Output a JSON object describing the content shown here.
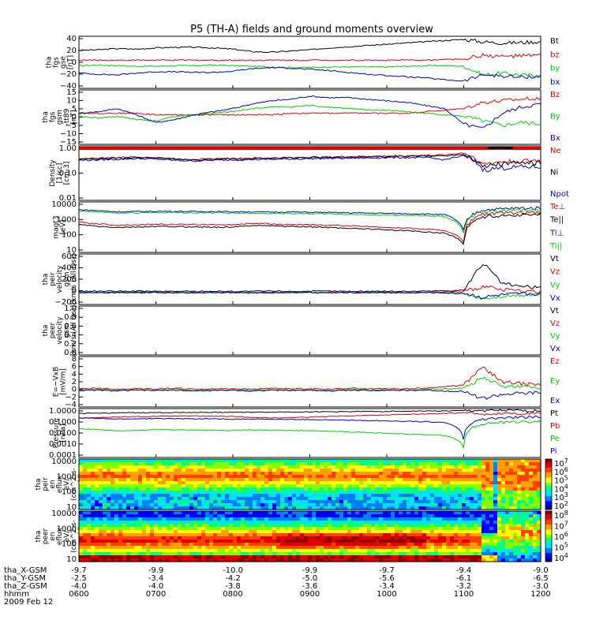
{
  "title": "P5 (TH-A) fields and ground moments overview",
  "colors": {
    "black": "#000000",
    "red": "#e00000",
    "green": "#00cc00",
    "blue": "#0000cc"
  },
  "chart_data": [
    {
      "type": "line",
      "ylabel": [
        "tha",
        "fgs",
        "gse",
        "[nT]"
      ],
      "yticks": [
        "40",
        "20",
        "0",
        "−20",
        "−40"
      ],
      "ylim": [
        -40,
        45
      ],
      "legend": [
        {
          "label": "Bt",
          "color": "#000000"
        },
        {
          "label": "bz",
          "color": "#e00000"
        },
        {
          "label": "by",
          "color": "#00cc00"
        },
        {
          "label": "bx",
          "color": "#0000cc"
        }
      ],
      "series": [
        {
          "name": "Bt",
          "values": [
            22,
            23,
            25,
            24,
            26,
            27,
            27,
            26,
            24,
            20,
            19,
            21,
            23,
            26,
            28,
            30,
            32,
            34,
            36,
            38,
            40,
            36,
            34,
            35,
            36
          ]
        },
        {
          "name": "bz",
          "values": [
            6,
            6,
            6,
            6,
            6,
            6,
            6,
            6,
            6,
            6,
            6,
            6,
            6,
            6,
            6,
            6,
            6,
            6,
            6,
            7,
            8,
            14,
            12,
            13,
            14
          ]
        },
        {
          "name": "by",
          "values": [
            -3,
            -2,
            -3,
            -4,
            -4,
            -3,
            -3,
            -2,
            -3,
            -4,
            -5,
            -6,
            -6,
            -5,
            -5,
            -5,
            -5,
            -4,
            -3,
            -3,
            -4,
            -18,
            -15,
            -18,
            -20
          ]
        },
        {
          "name": "bx",
          "values": [
            -15,
            -17,
            -18,
            -15,
            -13,
            -13,
            -14,
            -14,
            -12,
            -8,
            -6,
            -7,
            -9,
            -11,
            -14,
            -17,
            -19,
            -21,
            -23,
            -26,
            -28,
            -18,
            -20,
            -22,
            -20
          ]
        }
      ]
    },
    {
      "type": "line",
      "ylabel": [
        "tha",
        "fgs",
        "gsm",
        "-tt89",
        "[nT]"
      ],
      "yticks": [
        "15",
        "10",
        "5",
        "0",
        "−5",
        "−10",
        "−15"
      ],
      "ylim": [
        -18,
        17
      ],
      "legend": [
        {
          "label": "Bz",
          "color": "#e00000"
        },
        {
          "label": "By",
          "color": "#00cc00"
        },
        {
          "label": "Bx",
          "color": "#0000cc"
        }
      ],
      "series": [
        {
          "name": "Bz",
          "values": [
            2,
            2,
            2,
            2,
            1,
            1,
            1,
            1,
            1,
            1,
            1,
            2,
            2,
            2,
            2,
            2,
            2,
            2,
            3,
            4,
            5,
            9,
            10,
            11,
            12
          ]
        },
        {
          "name": "By",
          "values": [
            0,
            -1,
            0,
            -2,
            -3,
            0,
            1,
            2,
            3,
            5,
            6,
            6,
            7,
            6,
            5,
            4,
            4,
            3,
            2,
            1,
            0,
            -3,
            -6,
            -4,
            -5
          ]
        },
        {
          "name": "Bx",
          "values": [
            2,
            3,
            5,
            1,
            -4,
            -2,
            1,
            3,
            5,
            8,
            10,
            11,
            13,
            12,
            12,
            11,
            10,
            9,
            7,
            5,
            -5,
            -8,
            2,
            6,
            8
          ]
        }
      ]
    },
    {
      "type": "line",
      "ylabel": [
        "Density",
        "[1/cc]",
        "[cm-3]"
      ],
      "yticks": [
        "1.00",
        "0.10",
        "0.01"
      ],
      "ylog": true,
      "ylim": [
        0.007,
        1.6
      ],
      "legend": [
        {
          "label": "Ne",
          "color": "#e00000"
        },
        {
          "label": "Ni",
          "color": "#000000"
        },
        {
          "label": "Npot",
          "color": "#0000cc"
        }
      ],
      "series": [
        {
          "name": "Ne",
          "values": [
            0.45,
            0.47,
            0.5,
            0.55,
            0.5,
            0.45,
            0.42,
            0.44,
            0.46,
            0.47,
            0.48,
            0.5,
            0.52,
            0.53,
            0.55,
            0.56,
            0.58,
            0.6,
            0.62,
            0.65,
            0.8,
            0.25,
            0.33,
            0.35,
            0.38
          ]
        },
        {
          "name": "Ni",
          "values": [
            0.42,
            0.44,
            0.47,
            0.5,
            0.48,
            0.43,
            0.4,
            0.42,
            0.44,
            0.45,
            0.46,
            0.48,
            0.5,
            0.51,
            0.52,
            0.53,
            0.55,
            0.57,
            0.58,
            0.6,
            0.7,
            0.2,
            0.28,
            0.3,
            0.3
          ]
        },
        {
          "name": "Npot",
          "values": [
            0.38,
            0.4,
            0.42,
            0.45,
            0.43,
            0.38,
            0.36,
            0.38,
            0.4,
            0.41,
            0.42,
            0.43,
            0.45,
            0.46,
            0.47,
            0.48,
            0.5,
            0.5,
            0.5,
            0.4,
            0.6,
            0.15,
            0.18,
            0.2,
            0.2
          ]
        }
      ]
    },
    {
      "type": "line",
      "ylabel": [
        "magt3",
        "[eV]"
      ],
      "yticks": [
        "10000",
        "1000",
        "100",
        "10"
      ],
      "ylog": true,
      "ylim": [
        10,
        12000
      ],
      "legend": [
        {
          "label": "Te⊥",
          "color": "#e00000"
        },
        {
          "label": "Te||",
          "color": "#000000"
        },
        {
          "label": "Ti⊥",
          "color": "#0000cc"
        },
        {
          "label": "Ti||",
          "color": "#00cc00"
        }
      ],
      "series": [
        {
          "name": "Te⊥",
          "values": [
            700,
            550,
            450,
            480,
            520,
            510,
            500,
            490,
            480,
            600,
            550,
            500,
            480,
            450,
            420,
            380,
            340,
            300,
            260,
            220,
            40,
            2200,
            2500,
            2600,
            2600
          ]
        },
        {
          "name": "Te||",
          "values": [
            500,
            380,
            330,
            350,
            380,
            370,
            360,
            350,
            340,
            450,
            420,
            380,
            360,
            330,
            300,
            270,
            240,
            210,
            180,
            150,
            30,
            1500,
            1800,
            2000,
            2000
          ]
        },
        {
          "name": "Ti⊥",
          "values": [
            4000,
            3500,
            3000,
            3100,
            3200,
            3200,
            3100,
            3100,
            3000,
            3000,
            2900,
            2900,
            2800,
            2700,
            2600,
            2500,
            2400,
            2300,
            2200,
            2000,
            200,
            4000,
            4500,
            5000,
            5000
          ]
        },
        {
          "name": "Ti||",
          "values": [
            3200,
            2900,
            2500,
            2600,
            2700,
            2700,
            2600,
            2600,
            2500,
            2500,
            2400,
            2400,
            2300,
            2200,
            2100,
            2000,
            1900,
            1800,
            1700,
            1500,
            150,
            3200,
            3600,
            4000,
            4000
          ]
        }
      ]
    },
    {
      "type": "line",
      "ylabel": [
        "tha",
        "peir",
        "velocity",
        "gsm",
        "[km/s (All Qs)]"
      ],
      "yticks": [
        "600",
        "400",
        "200",
        "0",
        "−200"
      ],
      "ylim": [
        -200,
        650
      ],
      "legend": [
        {
          "label": "Vt",
          "color": "#000000"
        },
        {
          "label": "Vz",
          "color": "#e00000"
        },
        {
          "label": "Vy",
          "color": "#00cc00"
        },
        {
          "label": "Vx",
          "color": "#0000cc"
        }
      ],
      "series": [
        {
          "name": "Vt",
          "values": [
            20,
            25,
            20,
            25,
            20,
            22,
            20,
            24,
            20,
            22,
            25,
            20,
            22,
            25,
            20,
            22,
            24,
            20,
            25,
            30,
            40,
            500,
            150,
            100,
            80
          ]
        },
        {
          "name": "Vz",
          "values": [
            5,
            0,
            -5,
            5,
            0,
            5,
            -5,
            0,
            5,
            0,
            -5,
            5,
            0,
            5,
            -5,
            0,
            5,
            0,
            5,
            10,
            15,
            100,
            50,
            30,
            20
          ]
        },
        {
          "name": "Vy",
          "values": [
            -5,
            0,
            5,
            -5,
            0,
            -5,
            5,
            0,
            -5,
            0,
            5,
            -5,
            0,
            -5,
            5,
            0,
            -5,
            0,
            -5,
            -10,
            -20,
            -100,
            -60,
            -40,
            -30
          ]
        },
        {
          "name": "Vx",
          "values": [
            0,
            -5,
            0,
            5,
            0,
            -5,
            0,
            5,
            0,
            -5,
            0,
            5,
            0,
            -5,
            0,
            5,
            0,
            -5,
            0,
            -5,
            -10,
            -80,
            -40,
            -20,
            -20
          ]
        }
      ]
    },
    {
      "type": "line",
      "ylabel": [
        "tha",
        "peer",
        "velocity",
        "gsm",
        "[km/s (All Qs)]"
      ],
      "yticks": [
        "1.0",
        "0.8",
        "0.6",
        "0.4",
        "0.2",
        "0.0"
      ],
      "ylim": [
        0,
        1
      ],
      "legend": [
        {
          "label": "Vt",
          "color": "#000000"
        },
        {
          "label": "Vz",
          "color": "#e00000"
        },
        {
          "label": "Vy",
          "color": "#00cc00"
        },
        {
          "label": "Vx",
          "color": "#0000cc"
        }
      ],
      "series": []
    },
    {
      "type": "line",
      "ylabel": [
        "E=−VxB",
        "[mV/m]"
      ],
      "yticks": [
        "8",
        "6",
        "4",
        "2",
        "0",
        "−2",
        "−4"
      ],
      "ylim": [
        -4,
        8
      ],
      "legend": [
        {
          "label": "Ez",
          "color": "#e00000"
        },
        {
          "label": "Ey",
          "color": "#00cc00"
        },
        {
          "label": "Ex",
          "color": "#0000cc"
        }
      ],
      "series": [
        {
          "name": "Ez",
          "values": [
            0.3,
            0.5,
            0.2,
            0.4,
            0.3,
            0.5,
            0.2,
            0.3,
            0.4,
            0.2,
            0.5,
            0.3,
            0.4,
            0.2,
            0.5,
            0.3,
            0.4,
            0.3,
            0.5,
            0.8,
            1.2,
            5.5,
            2,
            1.5,
            1.2
          ]
        },
        {
          "name": "Ey",
          "values": [
            0,
            0.2,
            -0.1,
            0.1,
            0,
            0.2,
            -0.1,
            0,
            0.1,
            -0.1,
            0.2,
            0,
            0.1,
            -0.1,
            0.2,
            0,
            0.1,
            0,
            0.2,
            0.3,
            0.5,
            3,
            1,
            0.8,
            0.6
          ]
        },
        {
          "name": "Ex",
          "values": [
            -0.1,
            0,
            -0.2,
            0,
            -0.1,
            0,
            -0.2,
            -0.1,
            0,
            -0.2,
            0,
            -0.1,
            0,
            -0.2,
            0,
            -0.1,
            0,
            -0.1,
            0,
            -0.2,
            -0.3,
            -2,
            -1,
            -0.8,
            -0.6
          ]
        }
      ]
    },
    {
      "type": "line",
      "ylabel": [
        "Pressure",
        "[nPa]"
      ],
      "yticks": [
        "1.0000",
        "0.1000",
        "0.0100",
        "0.0010",
        "0.0001"
      ],
      "ylog": true,
      "ylim": [
        0.0001,
        1.6
      ],
      "legend": [
        {
          "label": "Pt",
          "color": "#000000"
        },
        {
          "label": "Pb",
          "color": "#e00000"
        },
        {
          "label": "Pe",
          "color": "#00cc00"
        },
        {
          "label": "Pi",
          "color": "#0000cc"
        }
      ],
      "series": [
        {
          "name": "Pt",
          "values": [
            0.6,
            0.65,
            0.68,
            0.7,
            0.72,
            0.74,
            0.75,
            0.76,
            0.78,
            0.78,
            0.8,
            0.82,
            0.84,
            0.86,
            0.88,
            0.9,
            0.92,
            0.95,
            0.98,
            1.0,
            1.05,
            1.1,
            1.1,
            1.05,
            1.05
          ]
        },
        {
          "name": "Pb",
          "values": [
            0.25,
            0.27,
            0.3,
            0.32,
            0.34,
            0.36,
            0.36,
            0.35,
            0.33,
            0.28,
            0.25,
            0.27,
            0.3,
            0.34,
            0.38,
            0.42,
            0.46,
            0.5,
            0.55,
            0.6,
            0.7,
            0.55,
            0.6,
            0.62,
            0.65
          ]
        },
        {
          "name": "Pe",
          "values": [
            0.03,
            0.025,
            0.02,
            0.022,
            0.025,
            0.024,
            0.023,
            0.022,
            0.021,
            0.024,
            0.022,
            0.021,
            0.02,
            0.018,
            0.016,
            0.014,
            0.012,
            0.01,
            0.009,
            0.008,
            0.0006,
            0.08,
            0.1,
            0.12,
            0.12
          ]
        },
        {
          "name": "Pi",
          "values": [
            0.25,
            0.23,
            0.2,
            0.21,
            0.22,
            0.22,
            0.21,
            0.21,
            0.2,
            0.2,
            0.19,
            0.19,
            0.18,
            0.17,
            0.16,
            0.15,
            0.14,
            0.13,
            0.12,
            0.1,
            0.002,
            0.2,
            0.25,
            0.3,
            0.3
          ]
        }
      ]
    },
    {
      "type": "heatmap",
      "ylabel": [
        "tha",
        "peir",
        "en",
        "eflux",
        "eV/",
        "(cm^2-s-",
        "sr-eV)"
      ],
      "yticks": [
        "10000",
        "1000",
        "100",
        "10"
      ],
      "cbar": [
        "10^7",
        "10^6",
        "10^5",
        "10^4",
        "10^3",
        "10^2"
      ]
    },
    {
      "type": "heatmap",
      "ylabel": [
        "tha",
        "peer",
        "en",
        "eflux",
        "eV/",
        "(cm^2-s-",
        "sr-eV)"
      ],
      "yticks": [
        "10000",
        "1000",
        "100",
        "10"
      ],
      "cbar": [
        "10^8",
        "10^7",
        "10^6",
        "10^5",
        "10^4"
      ]
    }
  ],
  "xaxis": {
    "rows": [
      {
        "label": "tha_X-GSM",
        "values": [
          "-9.7",
          "-9.9",
          "-10.0",
          "-9.9",
          "-9.7",
          "-9.4",
          "-9.0"
        ]
      },
      {
        "label": "tha_Y-GSM",
        "values": [
          "-2.5",
          "-3.4",
          "-4.2",
          "-5.0",
          "-5.6",
          "-6.1",
          "-6.5"
        ]
      },
      {
        "label": "tha_Z-GSM",
        "values": [
          "-4.0",
          "-4.0",
          "-3.8",
          "-3.6",
          "-3.4",
          "-3.2",
          "-3.0"
        ]
      },
      {
        "label": "hhmm",
        "values": [
          "0600",
          "0700",
          "0800",
          "0900",
          "1000",
          "1100",
          "1200"
        ]
      }
    ],
    "date": "2009 Feb 12"
  }
}
